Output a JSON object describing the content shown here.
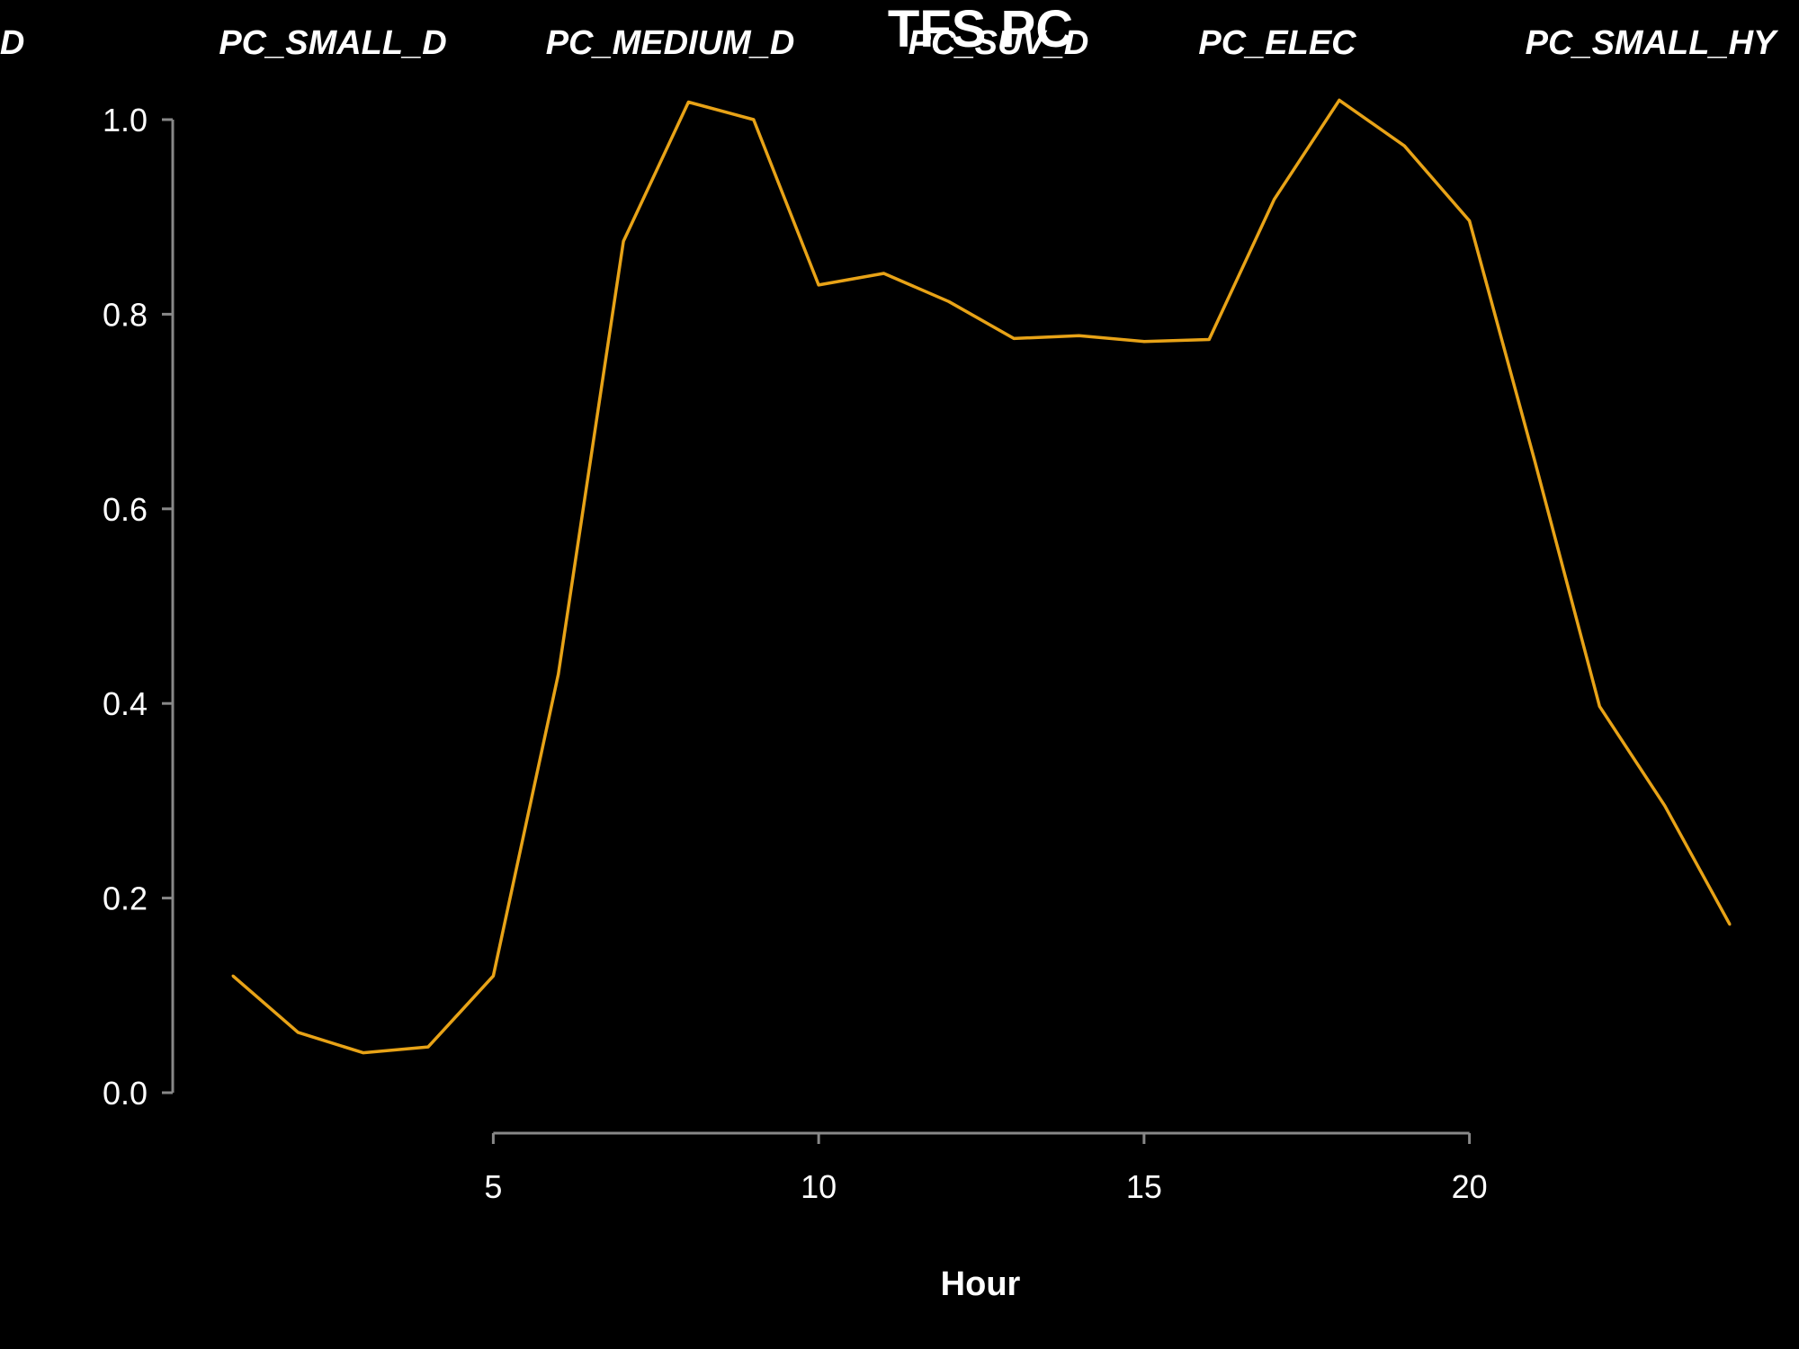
{
  "chart_data": {
    "type": "line",
    "title": "TFS PC",
    "xlabel": "Hour",
    "ylabel": "",
    "header_labels": [
      "NI_D",
      "PC_SMALL_D",
      "PC_MEDIUM_D",
      "PC_SUV_D",
      "PC_ELEC",
      "PC_SMALL_HY"
    ],
    "x_ticks": [
      5,
      10,
      15,
      20
    ],
    "y_ticks": [
      "0.0",
      "0.2",
      "0.4",
      "0.6",
      "0.8",
      "1.0"
    ],
    "xlim": [
      1,
      24
    ],
    "ylim": [
      0,
      1
    ],
    "grid": false,
    "legend": "none",
    "series": [
      {
        "color": "#E8A317",
        "x": [
          1,
          2,
          3,
          4,
          5,
          6,
          7,
          8,
          9,
          10,
          11,
          12,
          13,
          14,
          15,
          16,
          17,
          18,
          19,
          20,
          21,
          22,
          23,
          24
        ],
        "values": [
          0.12,
          0.062,
          0.041,
          0.047,
          0.12,
          0.43,
          0.875,
          1.018,
          1.0,
          0.83,
          0.842,
          0.813,
          0.775,
          0.778,
          0.772,
          0.774,
          0.918,
          1.02,
          0.973,
          0.896,
          0.65,
          0.397,
          0.295,
          0.173
        ]
      }
    ]
  }
}
